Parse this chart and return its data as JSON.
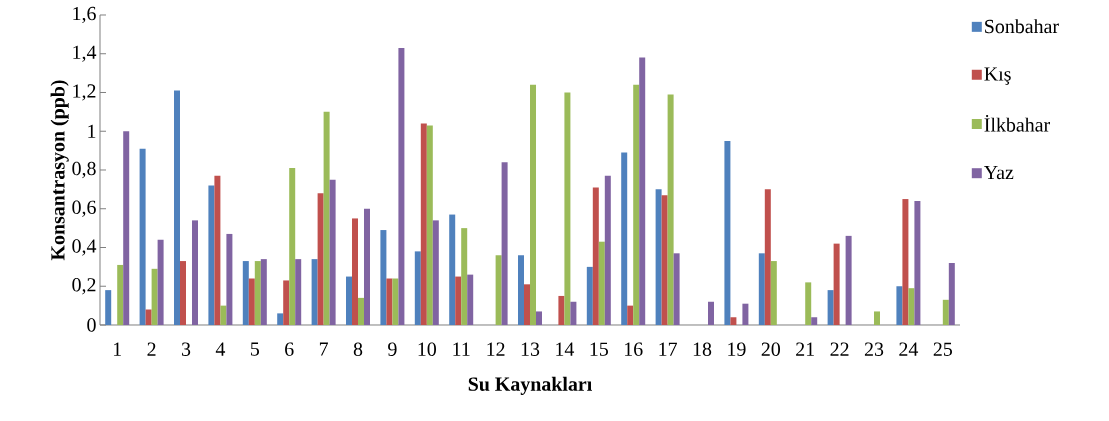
{
  "chart_data": {
    "type": "bar",
    "xlabel": "Su Kaynakları",
    "ylabel": "Konsantrasyon (ppb)",
    "categories": [
      "1",
      "2",
      "3",
      "4",
      "5",
      "6",
      "7",
      "8",
      "9",
      "10",
      "11",
      "12",
      "13",
      "14",
      "15",
      "16",
      "17",
      "18",
      "19",
      "20",
      "21",
      "22",
      "23",
      "24",
      "25"
    ],
    "series": [
      {
        "name": "Sonbahar",
        "color": "#4f81bd",
        "values": [
          0.18,
          0.91,
          1.21,
          0.72,
          0.33,
          0.06,
          0.34,
          0.25,
          0.49,
          0.38,
          0.57,
          0,
          0.36,
          0,
          0.3,
          0.89,
          0.7,
          0,
          0.95,
          0.37,
          0,
          0.18,
          0,
          0.2,
          0
        ]
      },
      {
        "name": "Kış",
        "color": "#c0504d",
        "values": [
          0,
          0.08,
          0.33,
          0.77,
          0.24,
          0.23,
          0.68,
          0.55,
          0.24,
          1.04,
          0.25,
          0,
          0.21,
          0.15,
          0.71,
          0.1,
          0.67,
          0,
          0.04,
          0.7,
          0,
          0.42,
          0,
          0.65,
          0
        ]
      },
      {
        "name": "İlkbahar",
        "color": "#9bbb59",
        "values": [
          0.31,
          0.29,
          0,
          0.1,
          0.33,
          0.81,
          1.1,
          0.14,
          0.24,
          1.03,
          0.5,
          0.36,
          1.24,
          1.2,
          0.43,
          1.24,
          1.19,
          0,
          0,
          0.33,
          0.22,
          0,
          0.07,
          0.19,
          0.13
        ]
      },
      {
        "name": "Yaz",
        "color": "#8064a2",
        "values": [
          1.0,
          0.44,
          0.54,
          0.47,
          0.34,
          0.34,
          0.75,
          0.6,
          1.43,
          0.54,
          0.26,
          0.84,
          0.07,
          0.12,
          0.77,
          1.38,
          0.37,
          0.12,
          0.11,
          0,
          0.04,
          0.46,
          0,
          0.64,
          0.32
        ]
      }
    ],
    "ylim": [
      0,
      1.6
    ],
    "yticks": [
      0,
      {
        "value": 0.2,
        "label": "0,2"
      },
      {
        "value": 0.4,
        "label": "0,4"
      },
      {
        "value": 0.6,
        "label": "0,6"
      },
      {
        "value": 0.8,
        "label": "0,8"
      },
      1,
      {
        "value": 1.2,
        "label": "1,2"
      },
      {
        "value": 1.4,
        "label": "1,4"
      },
      {
        "value": 1.6,
        "label": "1,6"
      }
    ],
    "grid": false,
    "legend": "right"
  }
}
